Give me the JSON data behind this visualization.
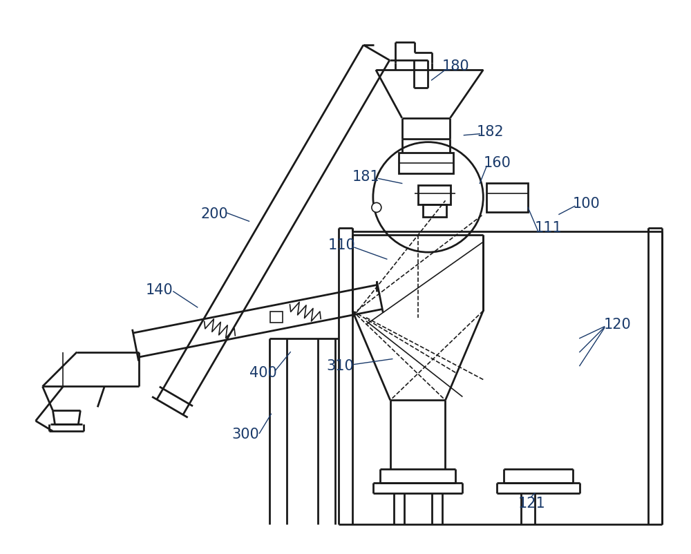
{
  "bg_color": "#ffffff",
  "line_color": "#1a1a1a",
  "label_color": "#1a3a6a",
  "label_fontsize": 15,
  "figsize": [
    10,
    8.02
  ],
  "dpi": 100
}
